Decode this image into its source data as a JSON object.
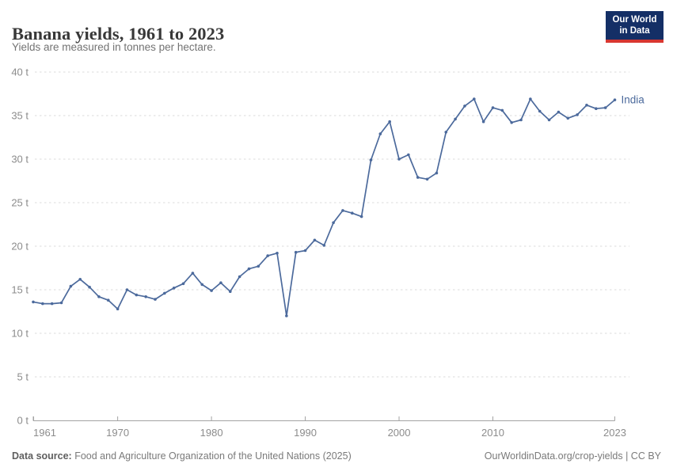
{
  "header": {
    "title": "Banana yields, 1961 to 2023",
    "subtitle": "Yields are measured in tonnes per hectare.",
    "logo": {
      "line1": "Our World",
      "line2": "in Data"
    }
  },
  "chart_data": {
    "type": "line",
    "title": "Banana yields, 1961 to 2023",
    "subtitle": "Yields are measured in tonnes per hectare.",
    "unit": "t",
    "grid": "horizontal-dashed",
    "legend": "end-of-line-label",
    "ylim": [
      0,
      40
    ],
    "yticks": [
      0,
      5,
      10,
      15,
      20,
      25,
      30,
      35,
      40
    ],
    "xticks": [
      1961,
      1970,
      1980,
      1990,
      2000,
      2010,
      2023
    ],
    "x": [
      1961,
      1962,
      1963,
      1964,
      1965,
      1966,
      1967,
      1968,
      1969,
      1970,
      1971,
      1972,
      1973,
      1974,
      1975,
      1976,
      1977,
      1978,
      1979,
      1980,
      1981,
      1982,
      1983,
      1984,
      1985,
      1986,
      1987,
      1988,
      1989,
      1990,
      1991,
      1992,
      1993,
      1994,
      1995,
      1996,
      1997,
      1998,
      1999,
      2000,
      2001,
      2002,
      2003,
      2004,
      2005,
      2006,
      2007,
      2008,
      2009,
      2010,
      2011,
      2012,
      2013,
      2014,
      2015,
      2016,
      2017,
      2018,
      2019,
      2020,
      2021,
      2022,
      2023
    ],
    "series": [
      {
        "name": "India",
        "color": "#4C6A9C",
        "values": [
          13.6,
          13.4,
          13.4,
          13.5,
          15.4,
          16.2,
          15.3,
          14.2,
          13.8,
          12.8,
          15.0,
          14.4,
          14.2,
          13.9,
          14.6,
          15.2,
          15.7,
          16.9,
          15.6,
          14.9,
          15.8,
          14.8,
          16.5,
          17.4,
          17.7,
          18.9,
          19.2,
          12.0,
          19.3,
          19.5,
          20.7,
          20.1,
          22.7,
          24.1,
          23.8,
          23.4,
          29.9,
          32.9,
          34.3,
          30.0,
          30.5,
          27.9,
          27.7,
          28.4,
          33.1,
          34.6,
          36.1,
          36.9,
          34.3,
          35.9,
          35.6,
          34.2,
          34.5,
          36.9,
          35.5,
          34.5,
          35.4,
          34.7,
          35.1,
          36.2,
          35.8,
          35.9,
          36.8
        ]
      }
    ]
  },
  "footer": {
    "source_label": "Data source:",
    "source_text": "Food and Agriculture Organization of the United Nations (2025)",
    "credit": "OurWorldinData.org/crop-yields | CC BY"
  },
  "colors": {
    "line": "#4C6A9C",
    "grid": "#DBDBDB",
    "axis": "#A3A3A3",
    "tick_label": "#8C8C8C",
    "title_text": "#383838",
    "subtitle_text": "#737373",
    "footer_text": "#7A7A7A",
    "logo_bg": "#142F66",
    "logo_accent": "#D83731"
  }
}
